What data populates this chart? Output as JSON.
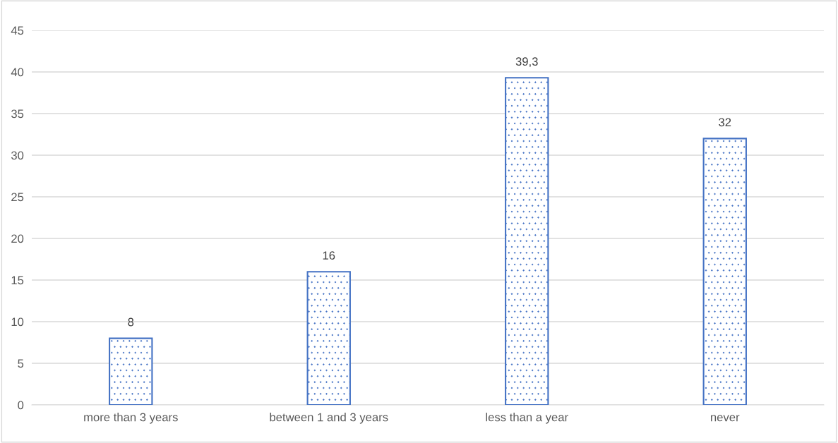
{
  "chart_data": {
    "type": "bar",
    "categories": [
      "more than 3 years",
      "between 1 and 3 years",
      "less than a year",
      "never"
    ],
    "values": [
      8,
      16,
      39.3,
      32
    ],
    "value_labels": [
      "8",
      "16",
      "39,3",
      "32"
    ],
    "color": "#4472c4",
    "ylim": [
      0,
      45
    ],
    "yticks": [
      0,
      5,
      10,
      15,
      20,
      25,
      30,
      35,
      40,
      45
    ],
    "grid": "y",
    "legend": false
  }
}
